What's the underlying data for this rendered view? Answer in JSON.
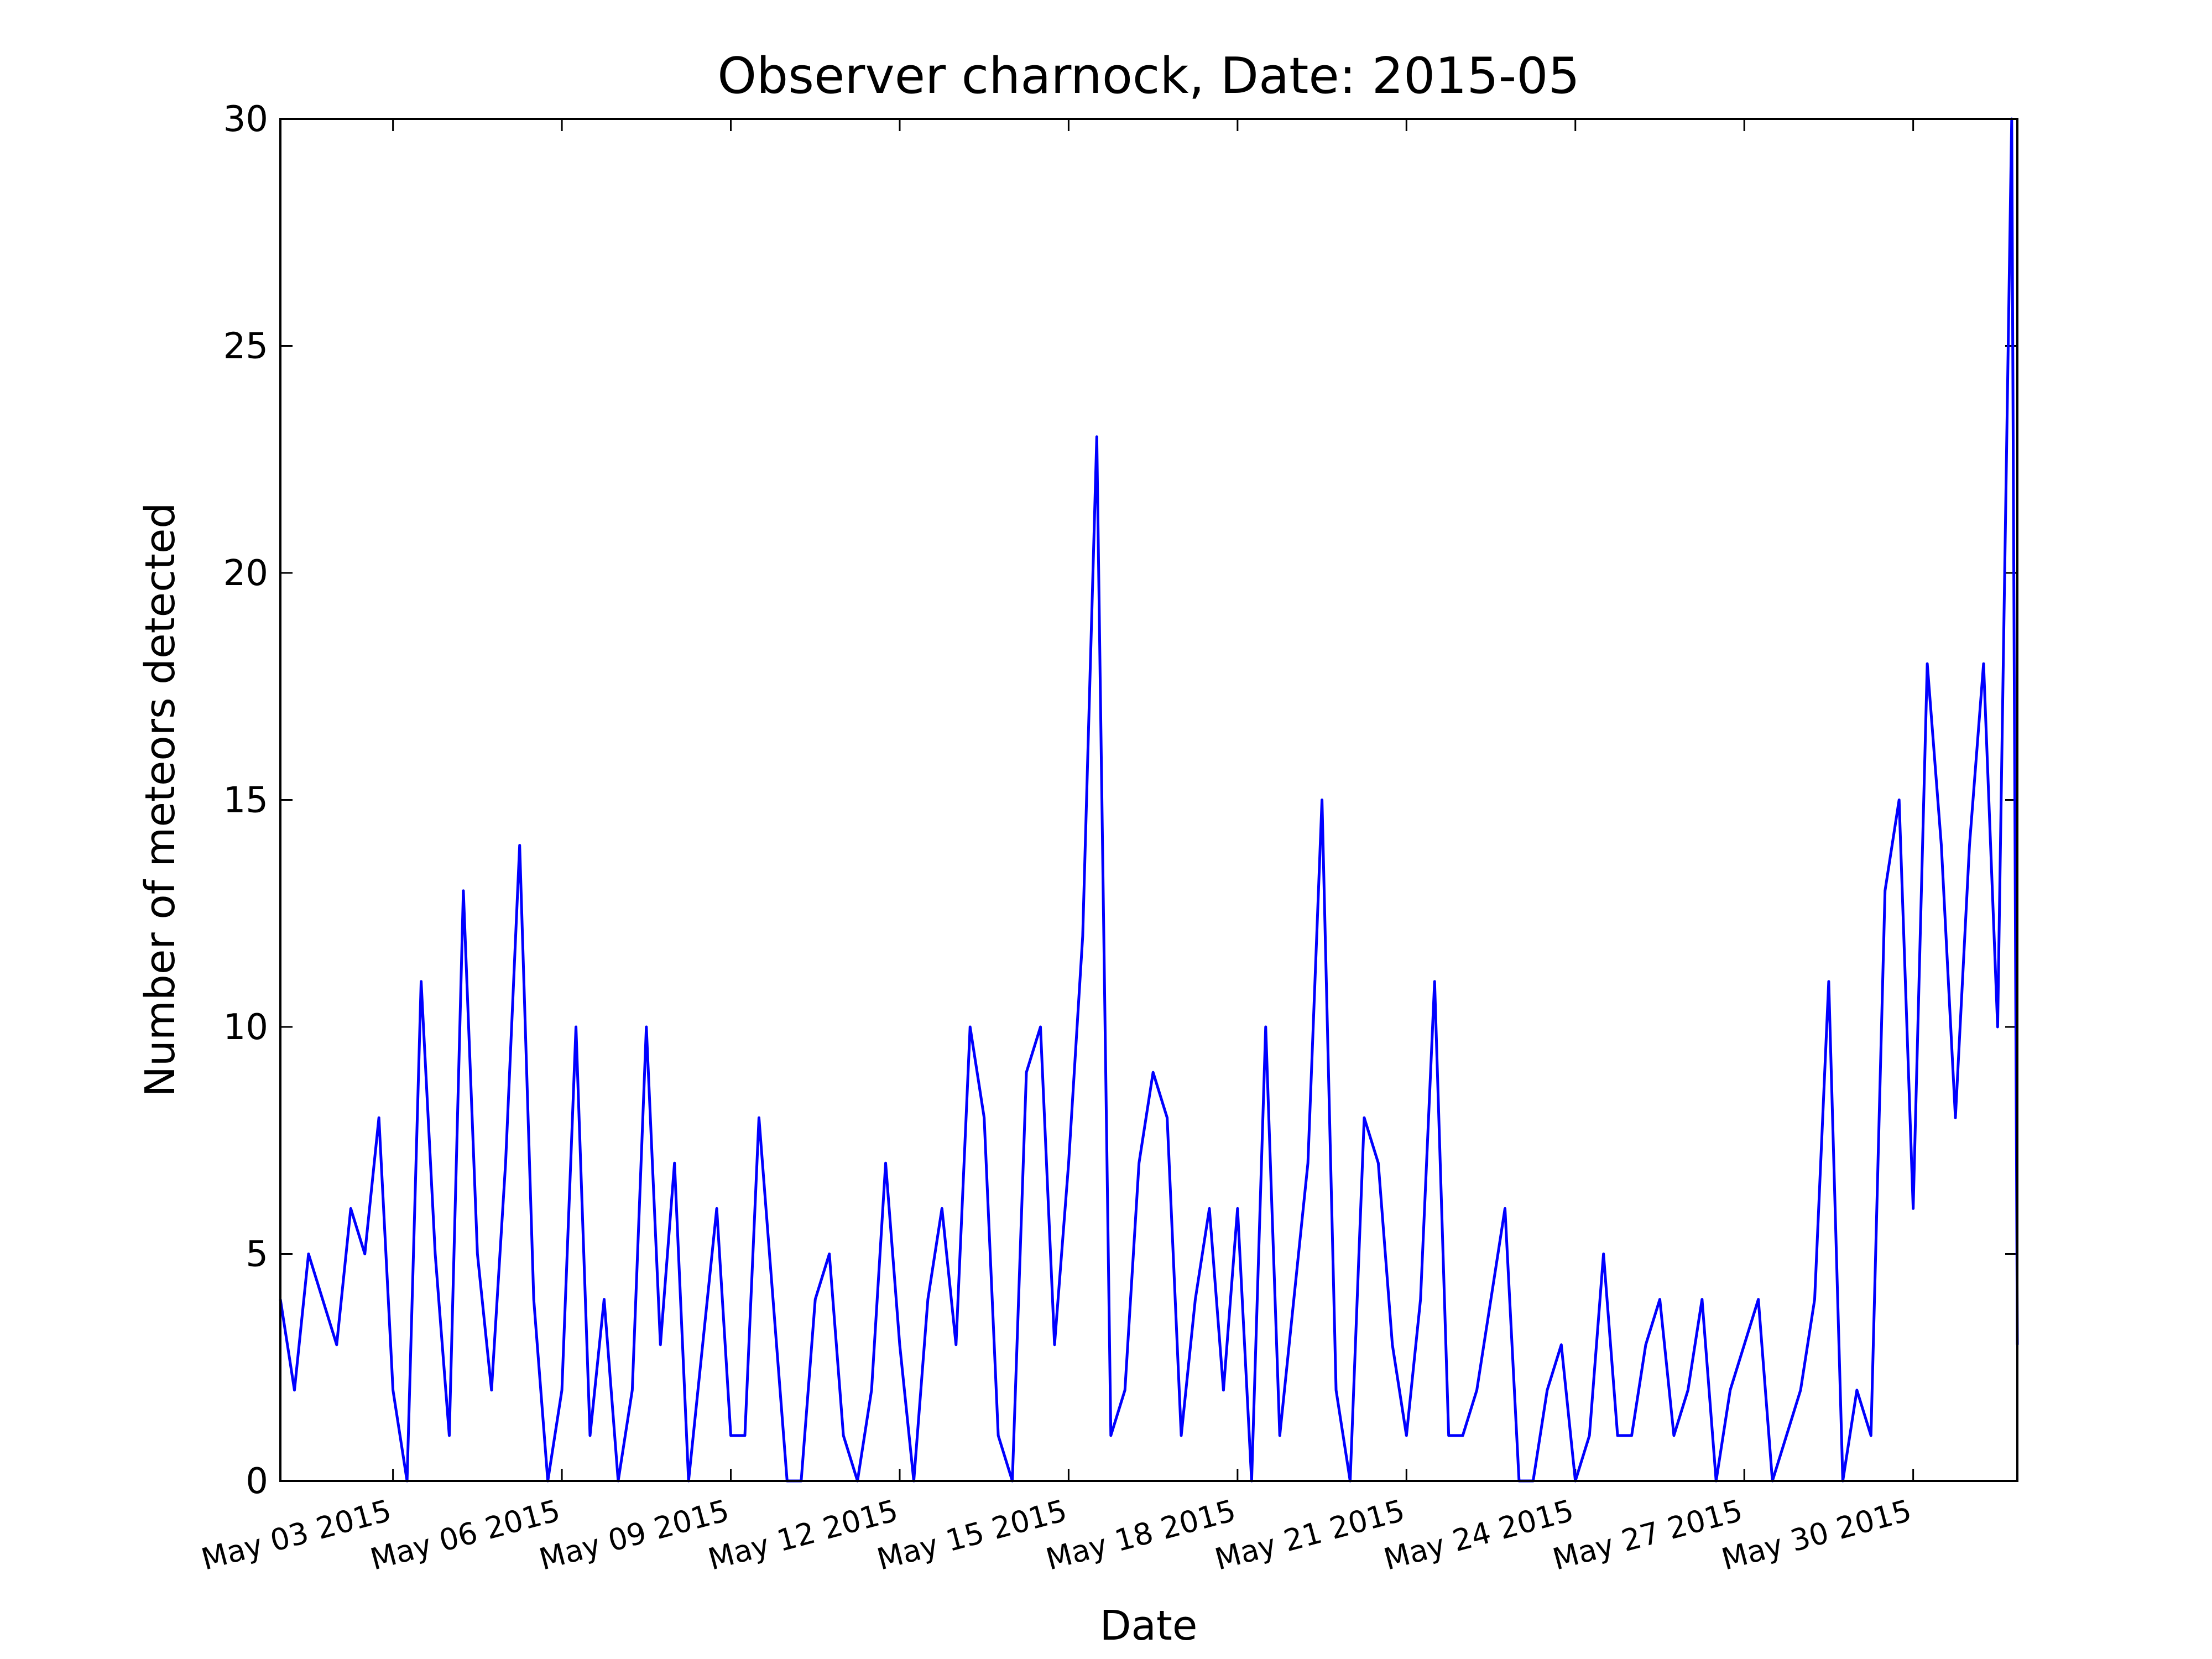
{
  "chart_data": {
    "type": "line",
    "title": "Observer charnock, Date: 2015-05",
    "x_label": "Date",
    "y_label": "Number of meteors detected",
    "x": [
      1,
      1.25,
      1.5,
      1.75,
      2,
      2.25,
      2.5,
      2.75,
      3,
      3.25,
      3.5,
      3.75,
      4,
      4.25,
      4.5,
      4.75,
      5,
      5.25,
      5.5,
      5.75,
      6,
      6.25,
      6.5,
      6.75,
      7,
      7.25,
      7.5,
      7.75,
      8,
      8.25,
      8.5,
      8.75,
      9,
      9.25,
      9.5,
      9.75,
      10,
      10.25,
      10.5,
      10.75,
      11,
      11.25,
      11.5,
      11.75,
      12,
      12.25,
      12.5,
      12.75,
      13,
      13.25,
      13.5,
      13.75,
      14,
      14.25,
      14.5,
      14.75,
      15,
      15.25,
      15.5,
      15.75,
      16,
      16.25,
      16.5,
      16.75,
      17,
      17.25,
      17.5,
      17.75,
      18,
      18.25,
      18.5,
      18.75,
      19,
      19.25,
      19.5,
      19.75,
      20,
      20.25,
      20.5,
      20.75,
      21,
      21.25,
      21.5,
      21.75,
      22,
      22.25,
      22.5,
      22.75,
      23,
      23.25,
      23.5,
      23.75,
      24,
      24.25,
      24.5,
      24.75,
      25,
      25.25,
      25.5,
      25.75,
      26,
      26.25,
      26.5,
      26.75,
      27,
      27.25,
      27.5,
      27.75,
      28,
      28.25,
      28.5,
      28.75,
      29,
      29.25,
      29.5,
      29.75,
      30,
      30.25,
      30.5,
      30.75,
      31,
      31.25,
      31.5,
      31.75,
      31.85
    ],
    "series": [
      {
        "name": "meteors",
        "color": "#0000ff",
        "values": [
          4,
          2,
          5,
          4,
          3,
          6,
          5,
          8,
          2,
          0,
          11,
          5,
          1,
          13,
          5,
          2,
          7,
          14,
          4,
          0,
          2,
          10,
          1,
          4,
          0,
          2,
          10,
          3,
          7,
          0,
          3,
          6,
          1,
          1,
          8,
          4,
          0,
          0,
          4,
          5,
          1,
          0,
          2,
          7,
          3,
          0,
          4,
          6,
          3,
          10,
          8,
          1,
          0,
          9,
          10,
          3,
          7,
          12,
          23,
          1,
          2,
          7,
          9,
          8,
          1,
          4,
          6,
          2,
          6,
          0,
          10,
          1,
          4,
          7,
          15,
          2,
          0,
          8,
          7,
          3,
          1,
          4,
          11,
          1,
          1,
          2,
          4,
          6,
          0,
          0,
          2,
          3,
          0,
          1,
          5,
          1,
          1,
          3,
          4,
          1,
          2,
          4,
          0,
          2,
          3,
          4,
          0,
          1,
          2,
          4,
          11,
          0,
          2,
          1,
          13,
          15,
          6,
          18,
          14,
          8,
          14,
          18,
          10,
          30,
          3
        ]
      }
    ],
    "xlim": [
      1,
      31.85
    ],
    "ylim": [
      0,
      30
    ],
    "xticks": [
      {
        "value": 3,
        "label": "May 03 2015"
      },
      {
        "value": 6,
        "label": "May 06 2015"
      },
      {
        "value": 9,
        "label": "May 09 2015"
      },
      {
        "value": 12,
        "label": "May 12 2015"
      },
      {
        "value": 15,
        "label": "May 15 2015"
      },
      {
        "value": 18,
        "label": "May 18 2015"
      },
      {
        "value": 21,
        "label": "May 21 2015"
      },
      {
        "value": 24,
        "label": "May 24 2015"
      },
      {
        "value": 27,
        "label": "May 27 2015"
      },
      {
        "value": 30,
        "label": "May 30 2015"
      }
    ],
    "yticks": [
      0,
      5,
      10,
      15,
      20,
      25,
      30
    ],
    "grid": false
  }
}
